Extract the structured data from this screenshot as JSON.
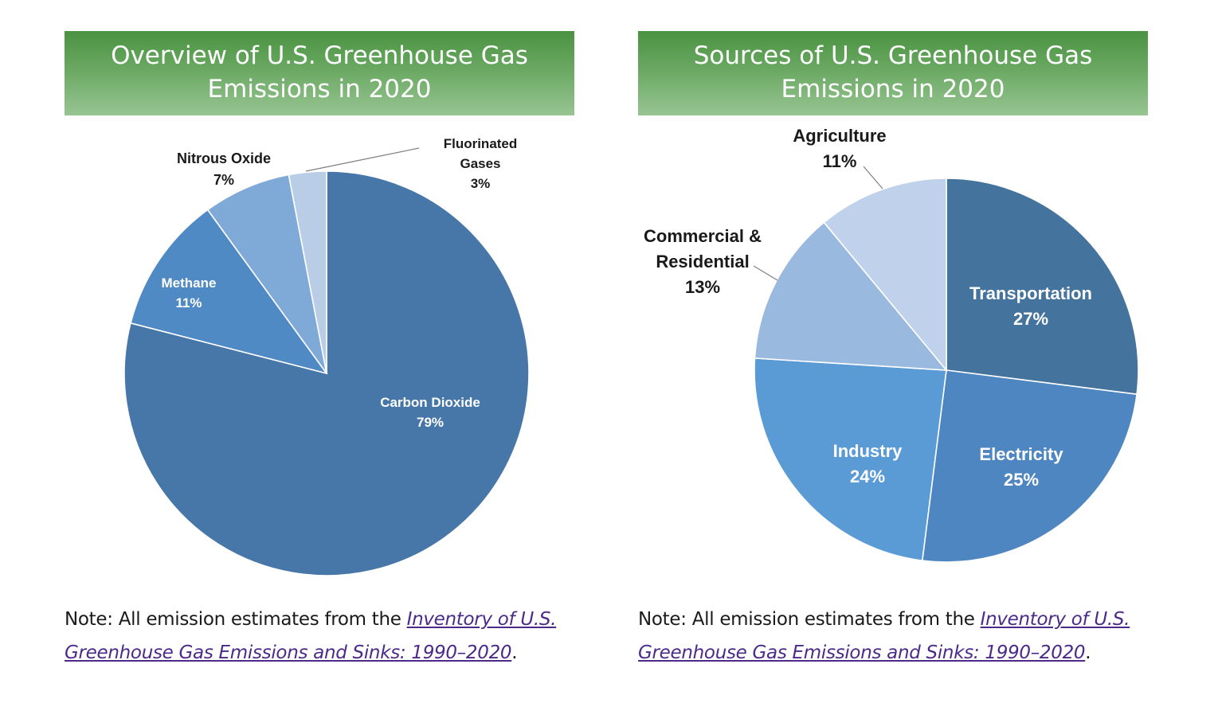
{
  "charts": [
    {
      "title_line1": "Overview of U.S. Greenhouse Gas",
      "title_line2": "Emissions in 2020",
      "note_prefix": "Note: All emission estimates from the ",
      "note_link_line1": "Inventory of U.S.",
      "note_link_line2": "Greenhouse Gas Emissions and Sinks: 1990–2020",
      "note_suffix": "."
    },
    {
      "title_line1": "Sources of U.S. Greenhouse Gas",
      "title_line2": "Emissions in 2020",
      "note_prefix": "Note: All emission estimates from the ",
      "note_link_line1": "Inventory of U.S.",
      "note_link_line2": "Greenhouse Gas Emissions and Sinks: 1990–2020",
      "note_suffix": "."
    }
  ],
  "chart_data": [
    {
      "type": "pie",
      "title": "Overview of U.S. Greenhouse Gas Emissions in 2020",
      "slices": [
        {
          "label_lines": [
            "Carbon Dioxide"
          ],
          "value": 79,
          "value_label": "79%",
          "color": "#4677a8"
        },
        {
          "label_lines": [
            "Methane"
          ],
          "value": 11,
          "value_label": "11%",
          "color": "#4f8ac5"
        },
        {
          "label_lines": [
            "Nitrous Oxide"
          ],
          "value": 7,
          "value_label": "7%",
          "color": "#7fa9d6"
        },
        {
          "label_lines": [
            "Fluorinated",
            "Gases"
          ],
          "value": 3,
          "value_label": "3%",
          "color": "#b9cde6"
        }
      ]
    },
    {
      "type": "pie",
      "title": "Sources of U.S. Greenhouse Gas Emissions in 2020",
      "slices": [
        {
          "label_lines": [
            "Transportation"
          ],
          "value": 27,
          "value_label": "27%",
          "color": "#44739d"
        },
        {
          "label_lines": [
            "Electricity"
          ],
          "value": 25,
          "value_label": "25%",
          "color": "#4d86c0"
        },
        {
          "label_lines": [
            "Industry"
          ],
          "value": 24,
          "value_label": "24%",
          "color": "#5a9ad5"
        },
        {
          "label_lines": [
            "Commercial &",
            "Residential"
          ],
          "value": 13,
          "value_label": "13%",
          "color": "#99b9de"
        },
        {
          "label_lines": [
            "Agriculture"
          ],
          "value": 11,
          "value_label": "11%",
          "color": "#bfd1eb"
        }
      ]
    }
  ]
}
